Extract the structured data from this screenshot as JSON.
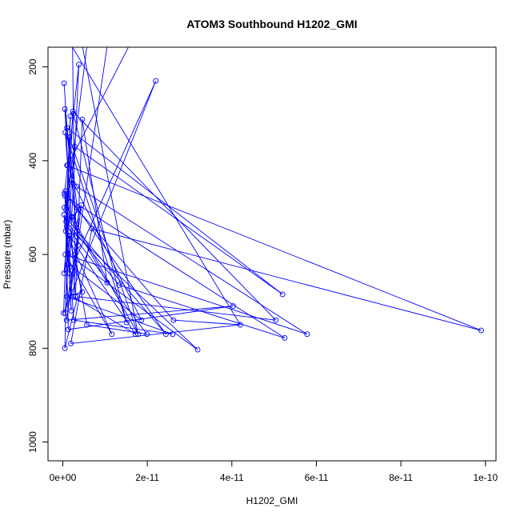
{
  "chart_data": {
    "type": "line",
    "title": "ATOM3 Southbound H1202_GMI",
    "xlabel": "H1202_GMI",
    "ylabel": "Pressure (mbar)",
    "xlim": [
      -3.5e-12,
      1.025e-10
    ],
    "ylim": [
      1040,
      158
    ],
    "y_reversed": true,
    "x_ticks": [
      0,
      2e-11,
      4e-11,
      6e-11,
      8e-11,
      1e-10
    ],
    "x_tick_labels": [
      "0e+00",
      "2e-11",
      "4e-11",
      "6e-11",
      "8e-11",
      "1e-10"
    ],
    "y_ticks": [
      200,
      400,
      600,
      800,
      1000
    ],
    "y_tick_labels": [
      "200",
      "400",
      "600",
      "800",
      "1000"
    ],
    "grid": false,
    "series": [
      {
        "color": "#0000ff",
        "marker": "open-circle",
        "x": [
          3e-13,
          1e-12,
          3.6e-12,
          5e-13,
          1.2e-12,
          2.5e-12,
          1.51e-11,
          6e-13,
          2e-12,
          4e-13,
          3.8e-12,
          1.5e-12,
          2.2e-11,
          2e-13,
          1.8e-12,
          8e-13,
          1.05e-11,
          4.6e-12,
          3e-12,
          2e-12,
          3.4e-12,
          1e-12,
          5.2e-11,
          2.8e-12,
          3e-13,
          4.4e-12,
          9e-13,
          4.03e-11,
          1.3e-12,
          6e-13,
          2.44e-11,
          1.1e-12,
          2.4e-12,
          5.04e-11,
          3.5e-12,
          5e-13,
          1.5e-12,
          1.78e-11,
          2.2e-12,
          7e-13,
          1.16e-11,
          6e-13,
          5.78e-11,
          3.3e-12,
          1e-12,
          9.9e-11,
          6.9e-12,
          1.9e-12,
          4.2e-11,
          2.62e-11,
          1.2e-12,
          5.25e-11,
          1.33e-11,
          8e-13,
          3.8e-12,
          2.5e-12,
          1.72e-11,
          1.6e-12,
          6e-13,
          2.9e-12,
          5.7e-12,
          1.99e-11,
          9e-13,
          3.19e-11,
          1.3e-12,
          2e-12,
          5e-13,
          2.6e-12,
          2.6e-11,
          1e-12,
          4.6e-12,
          3e-13,
          1.3e-12,
          1.86e-11,
          2.1e-12,
          4e-13
        ],
        "y": [
          235,
          330,
          580,
          290,
          410,
          300,
          745,
          340,
          520,
          470,
          195,
          640,
          230,
          725,
          305,
          505,
          660,
          312,
          690,
          560,
          500,
          330,
          685,
          370,
          640,
          495,
          740,
          710,
          760,
          465,
          770,
          525,
          295,
          740,
          690,
          800,
          350,
          770,
          520,
          550,
          770,
          600,
          770,
          455,
          410,
          762,
          545,
          790,
          750,
          740,
          480,
          778,
          665,
          530,
          505,
          690,
          770,
          560,
          725,
          600,
          750,
          770,
          540,
          803,
          600,
          720,
          475,
          740,
          770,
          690,
          680,
          515,
          620,
          740,
          440,
          500
        ],
        "offscale_top_x": [
          1.6e-11,
          5.8e-12,
          1.06e-11,
          4.5e-12,
          1.7e-12,
          2.3e-12
        ]
      }
    ]
  }
}
